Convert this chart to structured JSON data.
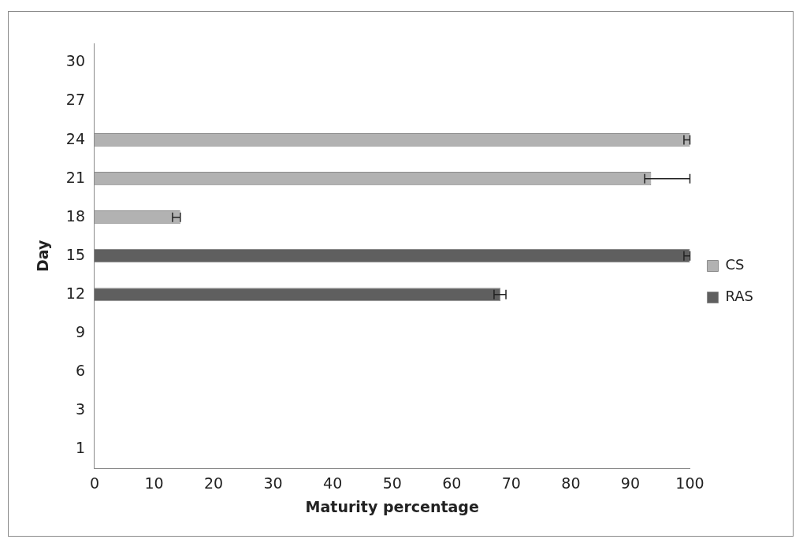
{
  "chart_data": {
    "type": "bar",
    "orientation": "horizontal",
    "xlabel": "Maturity percentage",
    "ylabel": "Day",
    "categories": [
      "30",
      "27",
      "24",
      "21",
      "18",
      "15",
      "12",
      "9",
      "6",
      "3",
      "1"
    ],
    "series": [
      {
        "name": "CS",
        "color": "#b2b2b2",
        "values": [
          null,
          null,
          100,
          93.5,
          14.4,
          null,
          null,
          null,
          null,
          null,
          null
        ],
        "errors": [
          null,
          null,
          [
            99,
            100
          ],
          [
            92.4,
            100
          ],
          [
            13.1,
            14.4
          ],
          null,
          null,
          null,
          null,
          null,
          null
        ]
      },
      {
        "name": "RAS",
        "color": "#5f5f5f",
        "values": [
          null,
          null,
          null,
          null,
          null,
          100,
          68.2,
          null,
          null,
          null,
          null
        ],
        "errors": [
          null,
          null,
          null,
          null,
          null,
          [
            99,
            100
          ],
          [
            67.1,
            69.1
          ],
          null,
          null,
          null,
          null
        ]
      }
    ],
    "xlim": [
      0,
      100
    ],
    "xticks": [
      0,
      10,
      20,
      30,
      40,
      50,
      60,
      70,
      80,
      90,
      100
    ],
    "grid": false,
    "legend": "right"
  }
}
